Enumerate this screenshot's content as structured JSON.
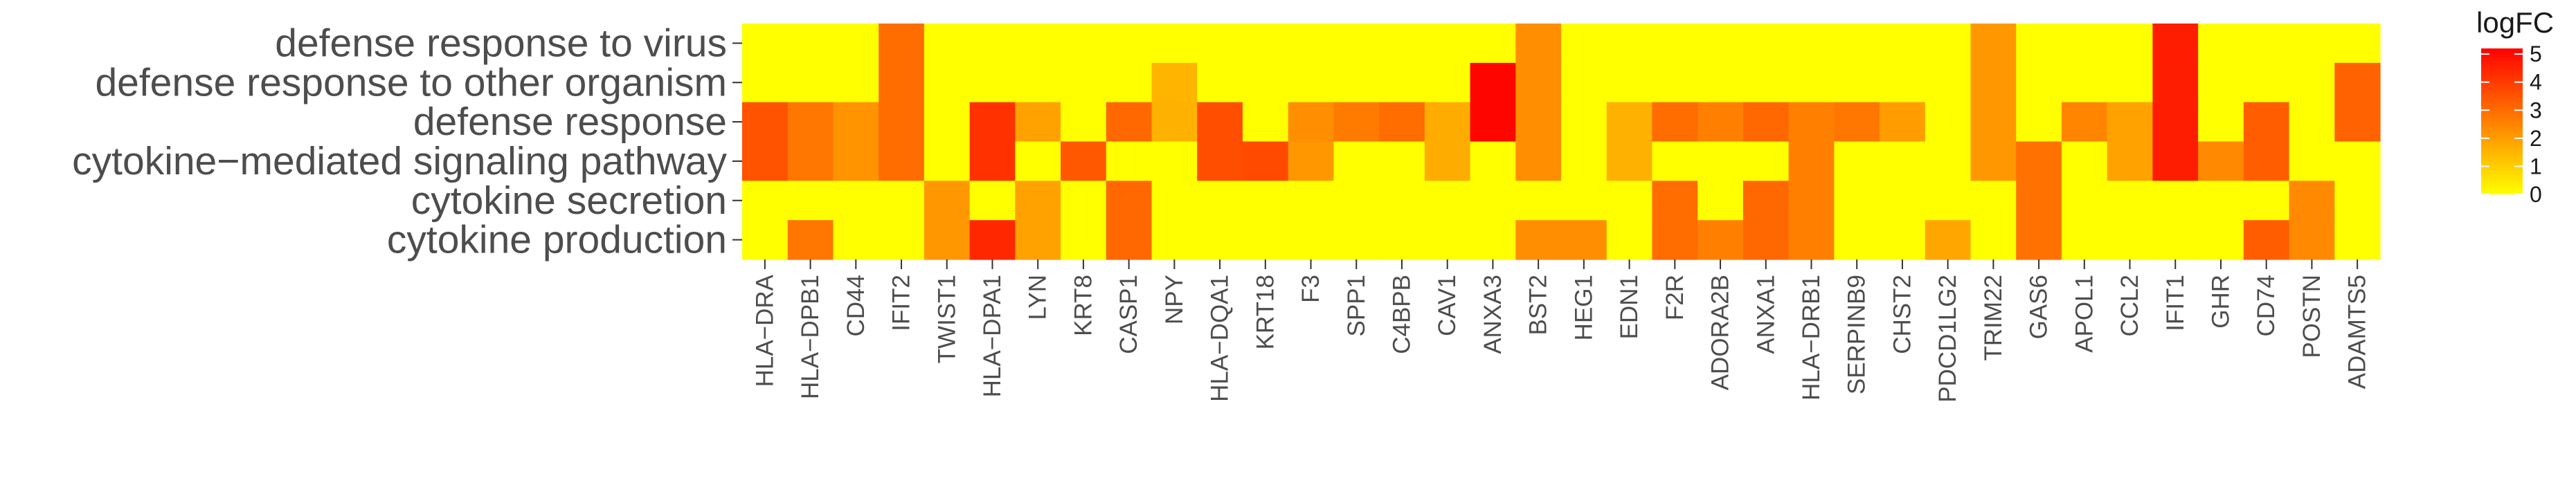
{
  "chart_data": {
    "type": "heatmap",
    "rows": [
      "defense response to virus",
      "defense response to other organism",
      "defense response",
      "cytokine−mediated signaling pathway",
      "cytokine secretion",
      "cytokine production"
    ],
    "columns": [
      "HLA−DRA",
      "HLA−DPB1",
      "CD44",
      "IFIT2",
      "TWIST1",
      "HLA−DPA1",
      "LYN",
      "KRT8",
      "CASP1",
      "NPY",
      "HLA−DQA1",
      "KRT18",
      "F3",
      "SPP1",
      "C4BPB",
      "CAV1",
      "ANXA3",
      "BST2",
      "HEG1",
      "EDN1",
      "F2R",
      "ADORA2B",
      "ANXA1",
      "HLA−DRB1",
      "SERPINB9",
      "CHST2",
      "PDCD1LG2",
      "TRIM22",
      "GAS6",
      "APOL1",
      "CCL2",
      "IFIT1",
      "GHR",
      "CD74",
      "POSTN",
      "ADAMTS5"
    ],
    "values": [
      [
        0,
        0,
        0,
        3.0,
        0,
        0,
        0,
        0,
        0,
        0,
        0,
        0,
        0,
        0,
        0,
        0,
        0,
        2.3,
        0,
        0,
        0,
        0,
        0,
        0,
        0,
        0,
        0,
        2.1,
        0,
        0,
        0,
        4.6,
        0,
        0,
        0,
        0
      ],
      [
        0,
        0,
        0,
        3.0,
        0,
        0,
        0,
        0,
        0,
        1.5,
        0,
        0,
        0,
        0,
        0,
        0,
        5.1,
        2.3,
        0,
        0,
        0,
        0,
        0,
        0,
        0,
        0,
        0,
        2.1,
        0,
        0,
        0,
        4.6,
        0,
        0,
        0,
        3.2
      ],
      [
        3.5,
        2.8,
        2.2,
        3.0,
        0,
        4.2,
        1.9,
        0,
        3.1,
        1.6,
        3.6,
        0,
        2.3,
        2.7,
        3.0,
        1.7,
        5.1,
        2.3,
        0,
        1.6,
        3.0,
        2.6,
        3.1,
        2.6,
        2.8,
        2.0,
        0,
        2.1,
        0,
        2.5,
        1.9,
        4.6,
        0,
        3.3,
        0,
        3.2
      ],
      [
        3.5,
        2.8,
        2.2,
        3.0,
        0,
        4.2,
        0,
        3.4,
        0,
        0,
        3.6,
        3.7,
        2.1,
        0,
        0,
        1.7,
        0,
        2.3,
        0,
        1.6,
        0,
        0,
        0,
        2.6,
        0,
        0,
        0,
        2.1,
        2.9,
        0,
        1.9,
        4.6,
        2.4,
        3.3,
        0,
        0
      ],
      [
        0,
        0,
        0,
        0,
        2.1,
        0,
        1.9,
        0,
        3.1,
        0,
        0,
        0,
        0,
        0,
        0,
        0,
        0,
        0,
        0,
        0,
        3.0,
        0,
        3.1,
        2.6,
        0,
        0,
        0,
        0,
        2.9,
        0,
        0,
        0,
        0,
        0,
        2.4,
        0
      ],
      [
        0,
        2.8,
        0,
        0,
        2.1,
        4.4,
        1.9,
        0,
        3.1,
        0,
        0,
        0,
        0,
        0,
        0,
        0,
        0,
        2.3,
        2.3,
        0,
        3.0,
        2.6,
        3.1,
        2.6,
        0,
        0,
        1.8,
        0,
        2.9,
        0,
        0,
        0,
        0,
        3.3,
        2.4,
        0
      ]
    ],
    "legend": {
      "title": "logFC",
      "ticks": [
        0,
        1,
        2,
        3,
        4,
        5
      ],
      "range": [
        0,
        5.2
      ],
      "colors": [
        "#ffff00",
        "#ff0000"
      ]
    }
  }
}
